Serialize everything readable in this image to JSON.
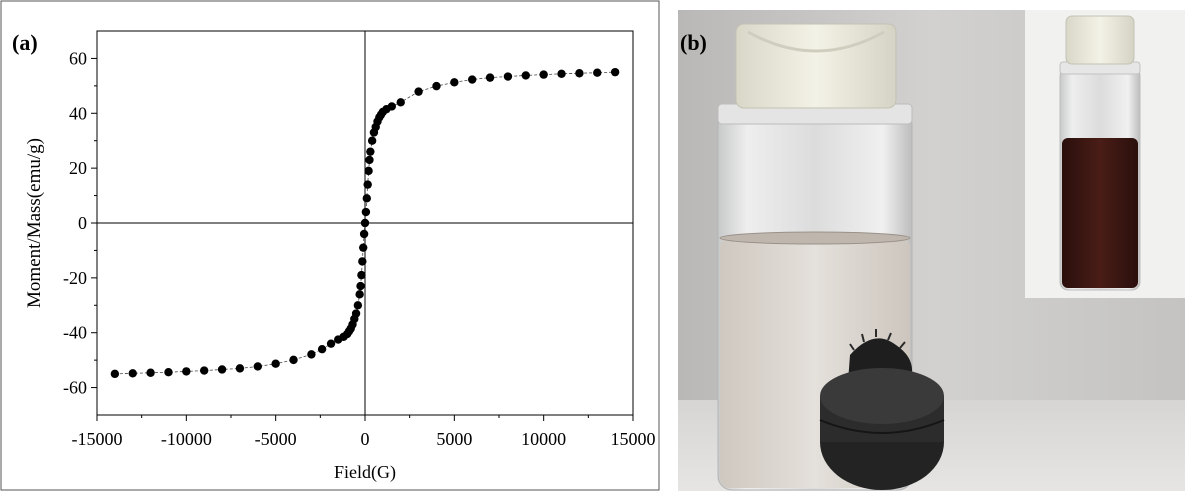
{
  "panel_a": {
    "tag": "(a)",
    "chart_data": {
      "type": "scatter",
      "xlabel": "Field(G)",
      "ylabel": "Moment/Mass(emu/g)",
      "xlim": [
        -15000,
        15000
      ],
      "ylim": [
        -70,
        70
      ],
      "xticks": [
        -15000,
        -10000,
        -5000,
        0,
        5000,
        10000,
        15000
      ],
      "xtick_labels": [
        "-15000",
        "-10000",
        "-5000",
        "0",
        "5000",
        "10000",
        "15000"
      ],
      "yticks": [
        -60,
        -40,
        -20,
        0,
        20,
        40,
        60
      ],
      "ytick_labels": [
        "-60",
        "-40",
        "-20",
        "0",
        "20",
        "40",
        "60"
      ],
      "grid": false,
      "marker_color": "#000000",
      "series": [
        {
          "x": [
            -14000,
            -13000,
            -12000,
            -11000,
            -10000,
            -9000,
            -8000,
            -7000,
            -6000,
            -5000,
            -4000,
            -3000,
            -2400,
            -1900,
            -1500,
            -1200,
            -1000,
            -900,
            -800,
            -700,
            -600,
            -500,
            -400,
            -300,
            -250,
            -200,
            -150,
            -100,
            -50,
            0,
            50,
            100,
            150,
            200,
            250,
            300,
            400,
            500,
            600,
            700,
            800,
            900,
            1000,
            1200,
            1500,
            2000,
            3000,
            4000,
            5000,
            6000,
            7000,
            8000,
            9000,
            10000,
            11000,
            12000,
            13000,
            14000
          ],
          "y": [
            -55,
            -54.8,
            -54.6,
            -54.4,
            -54.1,
            -53.8,
            -53.4,
            -53,
            -52.3,
            -51.3,
            -49.9,
            -47.9,
            -46,
            -44,
            -42.5,
            -41.5,
            -40.5,
            -39.5,
            -38.5,
            -37,
            -35,
            -33,
            -30,
            -26,
            -23,
            -19,
            -14,
            -9,
            -4,
            0,
            4,
            9,
            14,
            19,
            23,
            26,
            30,
            33,
            35,
            37,
            38.5,
            39.5,
            40.5,
            41.5,
            42.5,
            44,
            47.9,
            49.9,
            51.3,
            52.3,
            53,
            53.4,
            53.8,
            54.1,
            54.4,
            54.6,
            54.8,
            55
          ]
        }
      ]
    }
  },
  "panel_b": {
    "tag": "(b)"
  }
}
